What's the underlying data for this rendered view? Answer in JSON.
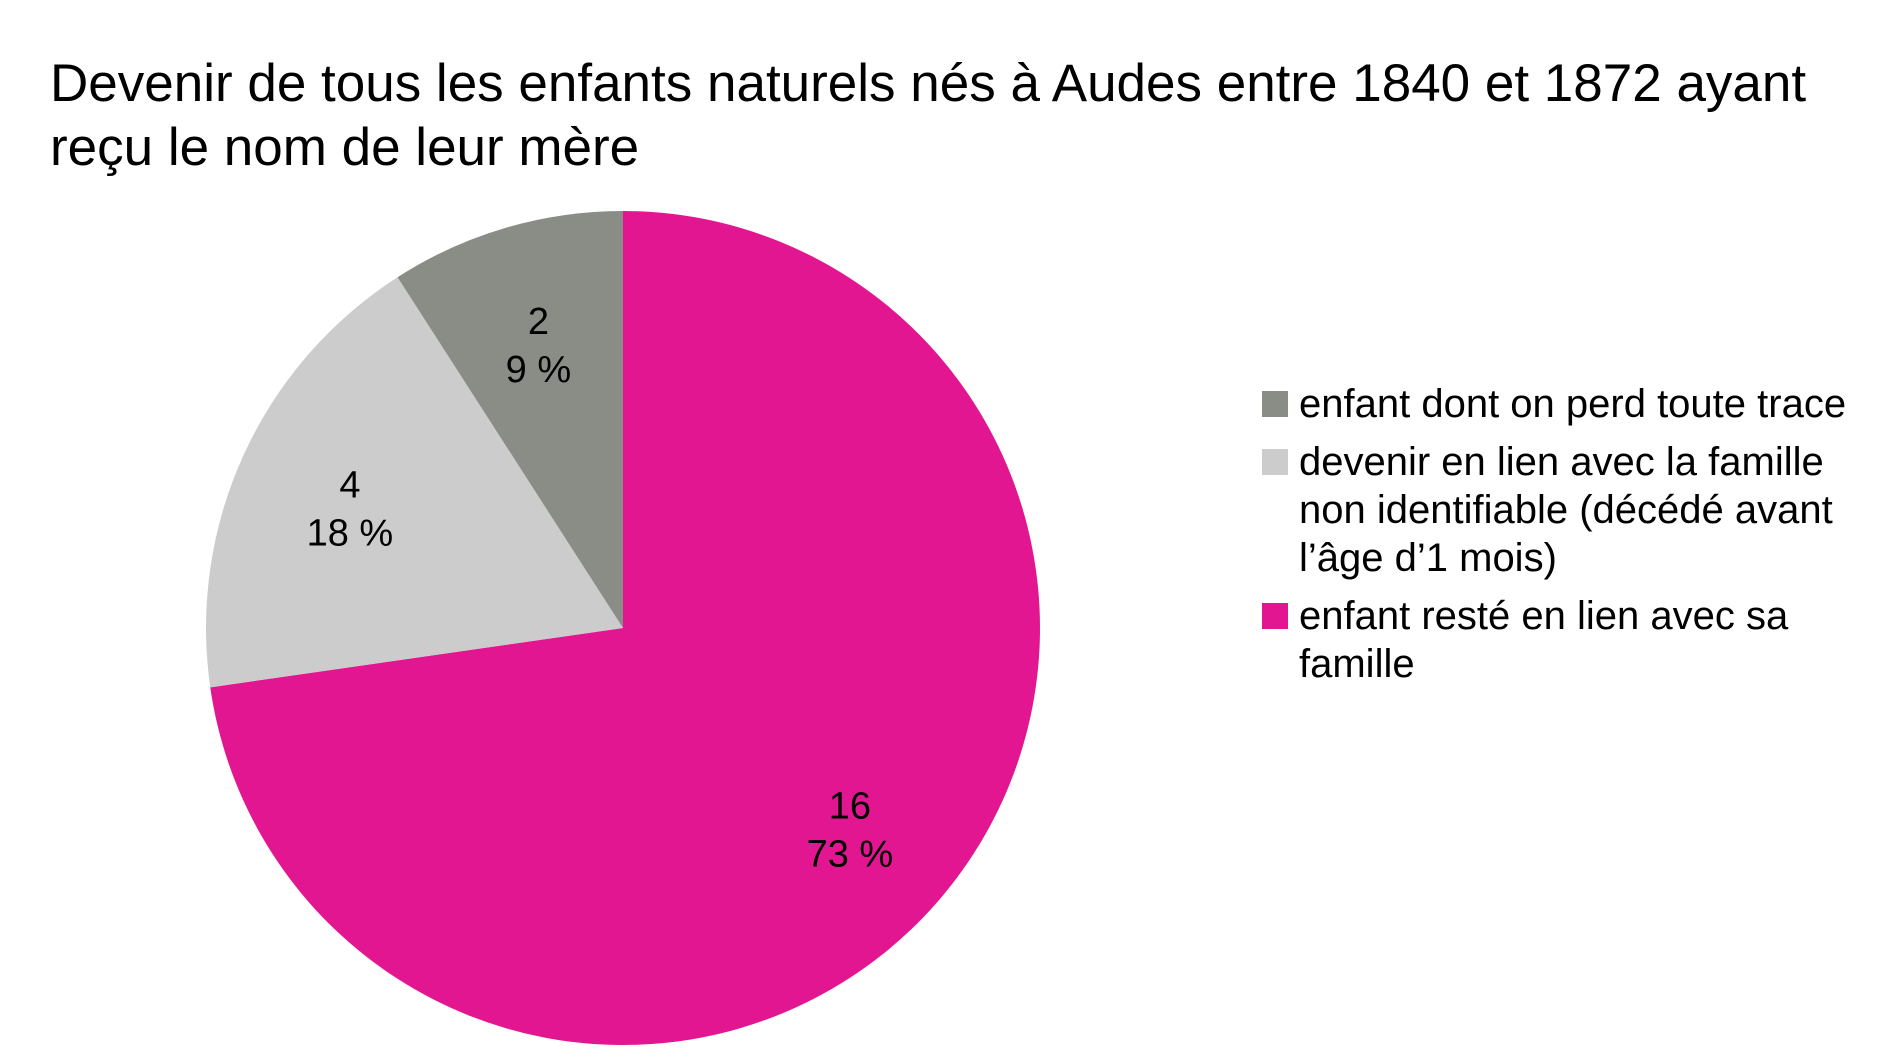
{
  "chart_data": {
    "type": "pie",
    "title": "Devenir de tous les enfants naturels nés à Audes entre 1840 et 1872 ayant reçu le nom de leur mère",
    "legend_position": "right",
    "slices": [
      {
        "label": "enfant resté en lien avec sa famille",
        "value": 16,
        "value_label": "16",
        "percent_label": "73 %",
        "color": "#e31691"
      },
      {
        "label": "devenir en lien avec la famille non identifiable (décédé avant l’âge d’1 mois)",
        "value": 4,
        "value_label": "4",
        "percent_label": "18 %",
        "color": "#cccccc"
      },
      {
        "label": "enfant dont on perd toute trace",
        "value": 2,
        "value_label": "2",
        "percent_label": "9 %",
        "color": "#8a8c86"
      }
    ],
    "legend_order": [
      2,
      1,
      0
    ]
  }
}
